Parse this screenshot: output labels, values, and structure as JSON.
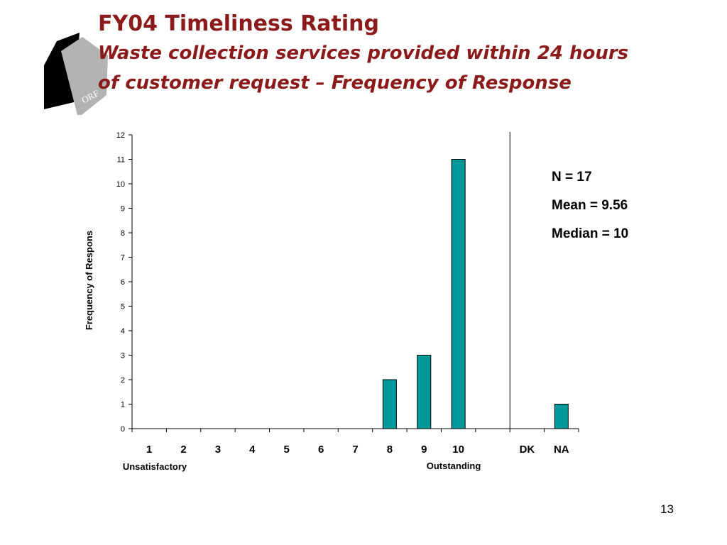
{
  "slide": {
    "title": "FY04 Timeliness Rating",
    "subtitle_line1": "Waste collection services provided within 24 hours",
    "subtitle_line2": "of customer request – Frequency of Response",
    "page_number": "13"
  },
  "logo": {
    "text": "ORF"
  },
  "stats": {
    "n": "N = 17",
    "mean": "Mean = 9.56",
    "median": "Median = 10"
  },
  "colors": {
    "bar": "#009999",
    "title": "#8b1a1a"
  },
  "chart_data": {
    "type": "bar",
    "categories": [
      "1",
      "2",
      "3",
      "4",
      "5",
      "6",
      "7",
      "8",
      "9",
      "10",
      "",
      "DK",
      "NA"
    ],
    "values": [
      0,
      0,
      0,
      0,
      0,
      0,
      0,
      2,
      3,
      11,
      0,
      0,
      1
    ],
    "ylabel": "Frequency of Respons",
    "ylim": [
      0,
      12
    ],
    "yticks": [
      "0",
      "1",
      "2",
      "3",
      "4",
      "5",
      "6",
      "7",
      "8",
      "9",
      "10",
      "11",
      "12"
    ],
    "scale_low_label": "Unsatisfactory",
    "scale_high_label": "Outstanding",
    "grid": false,
    "separator_after_category": 10
  }
}
